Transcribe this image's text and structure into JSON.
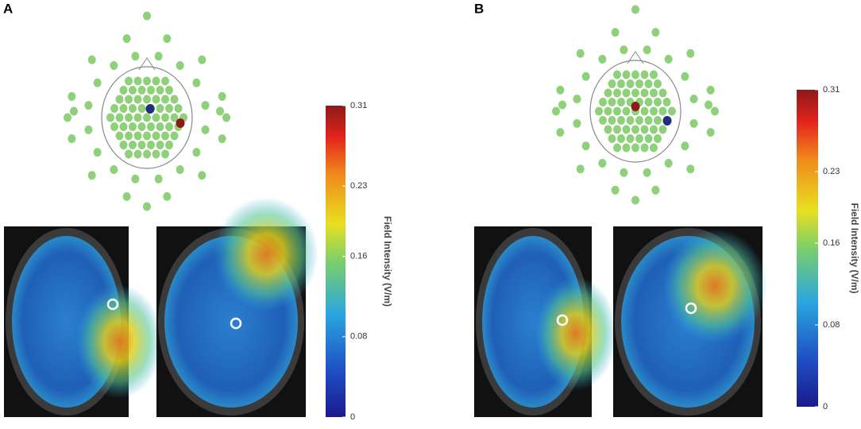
{
  "panels": [
    {
      "label": "A",
      "colorbar": {
        "title": "Field Intensity (V/m)",
        "lim": [
          0,
          0.31
        ],
        "ticks": [
          0,
          0.08,
          0.16,
          0.23,
          0.31
        ]
      }
    },
    {
      "label": "B",
      "colorbar": {
        "title": "Field Intensity (V/m)",
        "lim": [
          0,
          0.31
        ],
        "ticks": [
          0,
          0.08,
          0.16,
          0.23,
          0.31
        ]
      }
    }
  ]
}
